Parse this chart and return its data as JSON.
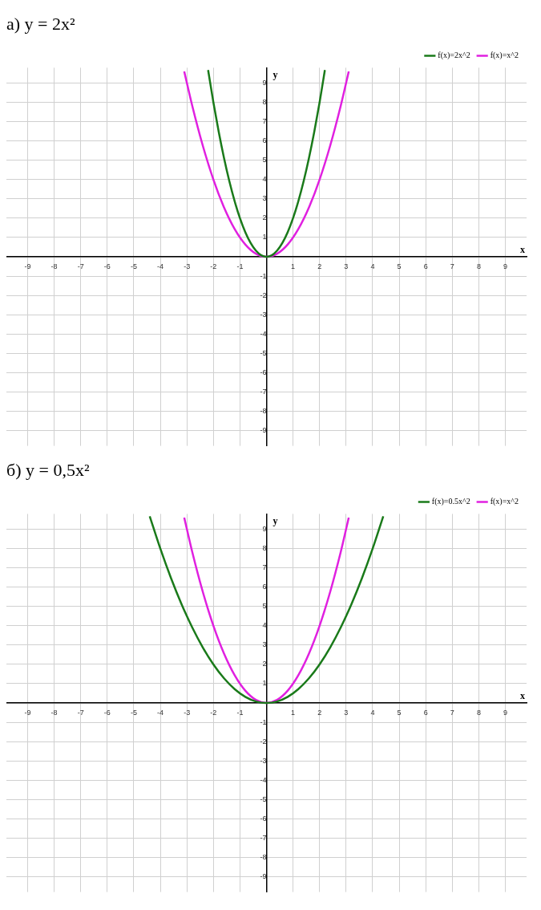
{
  "chart_data": [
    {
      "type": "line",
      "title": "а) y = 2x²",
      "xlabel": "x",
      "ylabel": "y",
      "xlim": [
        -9.8,
        9.8
      ],
      "ylim": [
        -9.8,
        9.8
      ],
      "xticks": [
        -9,
        -8,
        -7,
        -6,
        -5,
        -4,
        -3,
        -2,
        -1,
        {
          "value": 0,
          "label": null
        },
        1,
        2,
        3,
        4,
        5,
        6,
        7,
        8,
        9
      ],
      "yticks": [
        -9,
        -8,
        -7,
        -6,
        -5,
        -4,
        -3,
        -2,
        -1,
        {
          "value": 0,
          "label": null
        },
        1,
        2,
        3,
        4,
        5,
        6,
        7,
        8,
        9
      ],
      "grid": true,
      "legend": "top right",
      "marker": "none",
      "line_style": "solid",
      "series": [
        {
          "name": "f(x)=2x^2",
          "color": "#1a7a1a",
          "x": [
            -2.2,
            -2,
            -1.8,
            -1.6,
            -1.4,
            -1.2,
            -1,
            -0.8,
            -0.6,
            -0.4,
            -0.2,
            0,
            0.2,
            0.4,
            0.6,
            0.8,
            1,
            1.2,
            1.4,
            1.6,
            1.8,
            2,
            2.2
          ],
          "values": [
            9.68,
            8,
            6.48,
            5.12,
            3.92,
            2.88,
            2,
            1.28,
            0.72,
            0.32,
            0.08,
            0,
            0.08,
            0.32,
            0.72,
            1.28,
            2,
            2.88,
            3.92,
            5.12,
            6.48,
            8,
            9.68
          ]
        },
        {
          "name": "f(x)=x^2",
          "color": "#e020e0",
          "x": [
            -3.1,
            -2.8,
            -2.4,
            -2,
            -1.6,
            -1.2,
            -0.8,
            -0.4,
            0,
            0.4,
            0.8,
            1.2,
            1.6,
            2,
            2.4,
            2.8,
            3.1
          ],
          "values": [
            9.61,
            7.84,
            5.76,
            4,
            2.56,
            1.44,
            0.64,
            0.16,
            0,
            0.16,
            0.64,
            1.44,
            2.56,
            4,
            5.76,
            7.84,
            9.61
          ]
        }
      ]
    },
    {
      "type": "line",
      "title": "б) y = 0,5x²",
      "xlabel": "x",
      "ylabel": "y",
      "xlim": [
        -9.8,
        9.8
      ],
      "ylim": [
        -9.8,
        9.8
      ],
      "xticks": [
        -9,
        -8,
        -7,
        -6,
        -5,
        -4,
        -3,
        -2,
        -1,
        {
          "value": 0,
          "label": null
        },
        1,
        2,
        3,
        4,
        5,
        6,
        7,
        8,
        9
      ],
      "yticks": [
        -9,
        -8,
        -7,
        -6,
        -5,
        -4,
        -3,
        -2,
        -1,
        {
          "value": 0,
          "label": null
        },
        1,
        2,
        3,
        4,
        5,
        6,
        7,
        8,
        9
      ],
      "grid": true,
      "legend": "top right",
      "marker": "none",
      "line_style": "solid",
      "series": [
        {
          "name": "f(x)=0.5x^2",
          "color": "#1a7a1a",
          "x": [
            -4.4,
            -4,
            -3.6,
            -3.2,
            -2.8,
            -2.4,
            -2,
            -1.6,
            -1.2,
            -0.8,
            -0.4,
            0,
            0.4,
            0.8,
            1.2,
            1.6,
            2,
            2.4,
            2.8,
            3.2,
            3.6,
            4,
            4.4
          ],
          "values": [
            9.68,
            8,
            6.48,
            5.12,
            3.92,
            2.88,
            2,
            1.28,
            0.72,
            0.32,
            0.08,
            0,
            0.08,
            0.32,
            0.72,
            1.28,
            2,
            2.88,
            3.92,
            5.12,
            6.48,
            8,
            9.68
          ]
        },
        {
          "name": "f(x)=x^2",
          "color": "#e020e0",
          "x": [
            -3.1,
            -2.8,
            -2.4,
            -2,
            -1.6,
            -1.2,
            -0.8,
            -0.4,
            0,
            0.4,
            0.8,
            1.2,
            1.6,
            2,
            2.4,
            2.8,
            3.1
          ],
          "values": [
            9.61,
            7.84,
            5.76,
            4,
            2.56,
            1.44,
            0.64,
            0.16,
            0,
            0.16,
            0.64,
            1.44,
            2.56,
            4,
            5.76,
            7.84,
            9.61
          ]
        }
      ]
    }
  ]
}
